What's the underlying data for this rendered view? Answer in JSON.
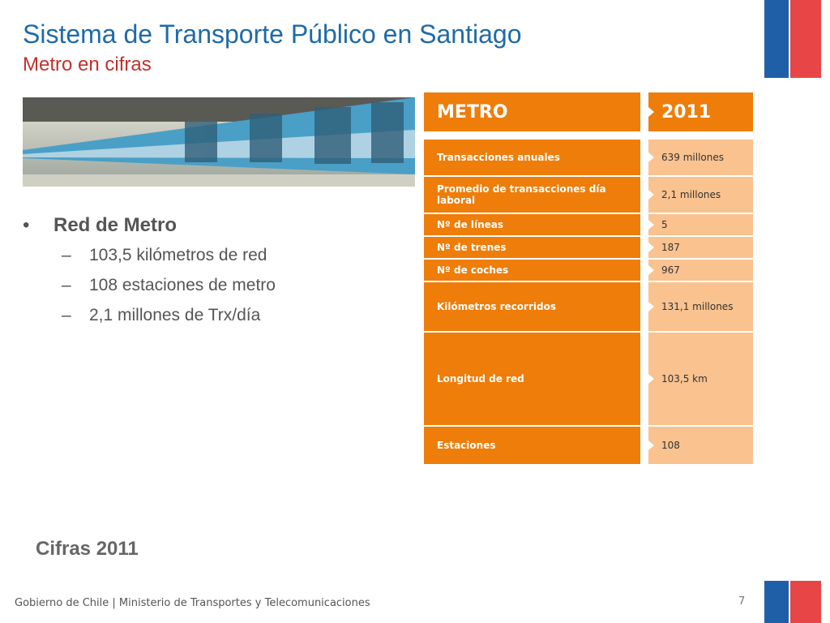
{
  "header": {
    "title": "Sistema de Transporte Público en Santiago",
    "subtitle": "Metro en cifras"
  },
  "bullets": {
    "main": "Red de Metro",
    "items": [
      "103,5 kilómetros de red",
      "108 estaciones de metro",
      "2,1 millones de Trx/día"
    ]
  },
  "caption": "Cifras 2011",
  "table": {
    "header": [
      "METRO",
      "2011"
    ],
    "rows": [
      [
        "Transacciones anuales",
        "639 millones"
      ],
      [
        "Promedio de transacciones día laboral",
        "2,1 millones"
      ],
      [
        "Nº de líneas",
        "5"
      ],
      [
        "Nº de trenes",
        "187"
      ],
      [
        "Nº de coches",
        "967"
      ],
      [
        "Kilómetros recorridos",
        "131,1 millones"
      ],
      [
        "Longitud de red",
        "103,5 km"
      ],
      [
        "Estaciones",
        "108"
      ]
    ]
  },
  "footer": {
    "text": "Gobierno de Chile | Ministerio de Transportes y Telecomunicaciones",
    "page": "7"
  }
}
